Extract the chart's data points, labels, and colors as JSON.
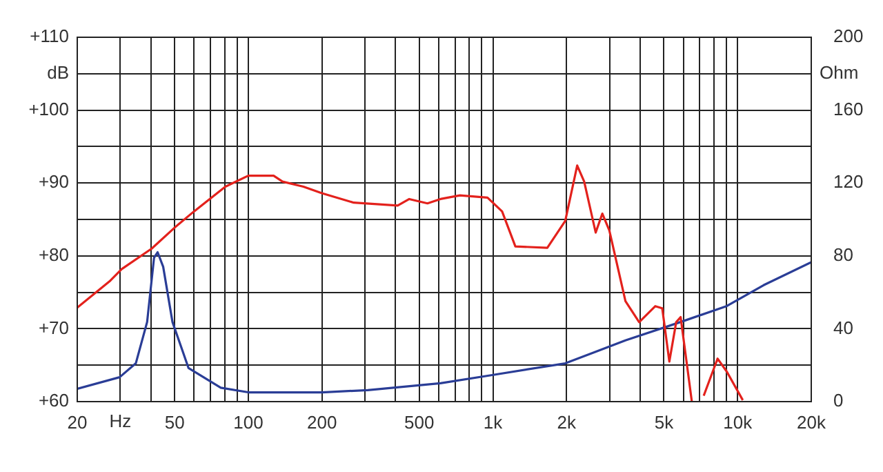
{
  "chart_data": {
    "type": "line",
    "xlabel": "Hz",
    "ylabel": "dB",
    "y2label": "Ohm",
    "log": "x",
    "grid": true,
    "legend": false,
    "marker": "none",
    "line_style": "solid",
    "xlim": [
      20,
      20000
    ],
    "xticks": [
      20,
      {
        "value": 30,
        "label": null
      },
      {
        "value": 40,
        "label": null
      },
      50,
      {
        "value": 60,
        "label": null
      },
      {
        "value": 70,
        "label": null
      },
      {
        "value": 80,
        "label": null
      },
      {
        "value": 90,
        "label": null
      },
      100,
      200,
      {
        "value": 300,
        "label": null
      },
      {
        "value": 400,
        "label": null
      },
      500,
      {
        "value": 600,
        "label": null
      },
      {
        "value": 700,
        "label": null
      },
      {
        "value": 800,
        "label": null
      },
      {
        "value": 900,
        "label": null
      },
      {
        "value": 1000,
        "label": "1k"
      },
      {
        "value": 2000,
        "label": "2k"
      },
      {
        "value": 3000,
        "label": null
      },
      {
        "value": 4000,
        "label": null
      },
      {
        "value": 5000,
        "label": "5k"
      },
      {
        "value": 6000,
        "label": null
      },
      {
        "value": 7000,
        "label": null
      },
      {
        "value": 8000,
        "label": null
      },
      {
        "value": 9000,
        "label": null
      },
      {
        "value": 10000,
        "label": "10k"
      },
      {
        "value": 20000,
        "label": "20k"
      }
    ],
    "ylim": [
      60,
      110
    ],
    "yticks": [
      {
        "value": 60,
        "label": "+60"
      },
      {
        "value": 65,
        "label": null
      },
      {
        "value": 70,
        "label": "+70"
      },
      {
        "value": 75,
        "label": null
      },
      {
        "value": 80,
        "label": "+80"
      },
      {
        "value": 85,
        "label": null
      },
      {
        "value": 90,
        "label": "+90"
      },
      {
        "value": 95,
        "label": null
      },
      {
        "value": 100,
        "label": "+100"
      },
      {
        "value": 105,
        "label": null
      },
      {
        "value": 110,
        "label": "+110"
      }
    ],
    "y2lim": [
      0,
      200
    ],
    "y2ticks": [
      0,
      40,
      80,
      120,
      160,
      200
    ],
    "series": [
      {
        "color": "#e3211c",
        "x": [
          20,
          27.3,
          30.4,
          40.3,
          50.1,
          60,
          80.6,
          100,
          127,
          138,
          168,
          200,
          270,
          408,
          455,
          540,
          610,
          733,
          950,
          1090,
          1235,
          1668,
          1975,
          2210,
          2360,
          2630,
          2800,
          2990,
          3480,
          3960,
          4610,
          4920,
          5260,
          5610,
          5850,
          6500,
          7100,
          7270,
          8280,
          9040,
          10500
        ],
        "values": [
          72.9,
          76.6,
          78.2,
          81.0,
          83.9,
          86.1,
          89.5,
          91.0,
          91.0,
          90.2,
          89.5,
          88.6,
          87.3,
          86.9,
          87.8,
          87.2,
          87.8,
          88.3,
          88.0,
          86.1,
          81.3,
          81.1,
          84.8,
          92.4,
          90.2,
          83.2,
          85.8,
          83.5,
          73.8,
          70.9,
          73.1,
          72.8,
          65.5,
          70.9,
          71.6,
          60,
          null,
          60.8,
          65.9,
          64.1,
          60.2
        ]
      },
      {
        "color": "#2a3d96",
        "axis": "y2",
        "x": [
          20,
          29.8,
          34.7,
          38.6,
          41.2,
          42.6,
          44.9,
          49,
          57,
          77.2,
          100,
          200,
          308,
          610,
          993,
          1975,
          3480,
          5850,
          9040,
          12770,
          20000
        ],
        "values": [
          7.0,
          13.4,
          21.0,
          43.7,
          79.0,
          82.0,
          74.0,
          43.7,
          18.4,
          7.6,
          5.1,
          5.1,
          6.3,
          10.1,
          14.6,
          21.0,
          33.6,
          43.7,
          52.5,
          63.9,
          76.5
        ]
      }
    ]
  }
}
